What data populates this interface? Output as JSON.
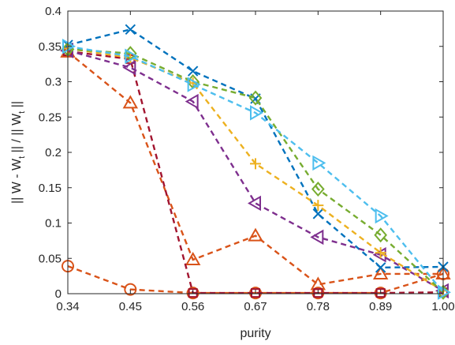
{
  "chart_data": {
    "type": "line",
    "x": [
      0.34,
      0.45,
      0.56,
      0.67,
      0.78,
      0.89,
      1.0
    ],
    "x_tick_labels": [
      "0.34",
      "0.45",
      "0.56",
      "0.67",
      "0.78",
      "0.89",
      "1.00"
    ],
    "y_tick_labels": [
      "0",
      "0.05",
      "0.1",
      "0.15",
      "0.2",
      "0.25",
      "0.3",
      "0.35",
      "0.4"
    ],
    "xlabel": "purity",
    "ylabel_parts": [
      "|| W - W",
      "t",
      " || / || W",
      "t",
      " ||"
    ],
    "xlim": [
      0.34,
      1.0
    ],
    "ylim": [
      0,
      0.4
    ],
    "grid": false,
    "series": [
      {
        "marker": "circle",
        "color": "#D95319",
        "values": [
          0.039,
          0.006,
          0.001,
          0.001,
          0.001,
          0.001,
          0.028
        ]
      },
      {
        "marker": "triangle-up",
        "color": "#D95319",
        "values": [
          0.342,
          0.27,
          0.048,
          0.082,
          0.013,
          0.028,
          0.028
        ]
      },
      {
        "marker": "square",
        "color": "#A2142F",
        "values": [
          0.343,
          0.332,
          0.001,
          0.001,
          0.001,
          0.001,
          0.002
        ]
      },
      {
        "marker": "x",
        "color": "#0072BD",
        "values": [
          0.352,
          0.374,
          0.315,
          0.276,
          0.113,
          0.037,
          0.038
        ]
      },
      {
        "marker": "triangle-left",
        "color": "#7E2F8E",
        "values": [
          0.344,
          0.32,
          0.272,
          0.128,
          0.08,
          0.055,
          0.004
        ]
      },
      {
        "marker": "plus",
        "color": "#EDB120",
        "values": [
          0.347,
          0.334,
          0.298,
          0.184,
          0.125,
          0.058,
          0.004
        ]
      },
      {
        "marker": "diamond",
        "color": "#77AC30",
        "values": [
          0.346,
          0.34,
          0.3,
          0.277,
          0.148,
          0.083,
          0.002
        ]
      },
      {
        "marker": "triangle-right",
        "color": "#4DBEEE",
        "values": [
          0.35,
          0.336,
          0.296,
          0.256,
          0.185,
          0.11,
          0.002
        ]
      }
    ]
  }
}
